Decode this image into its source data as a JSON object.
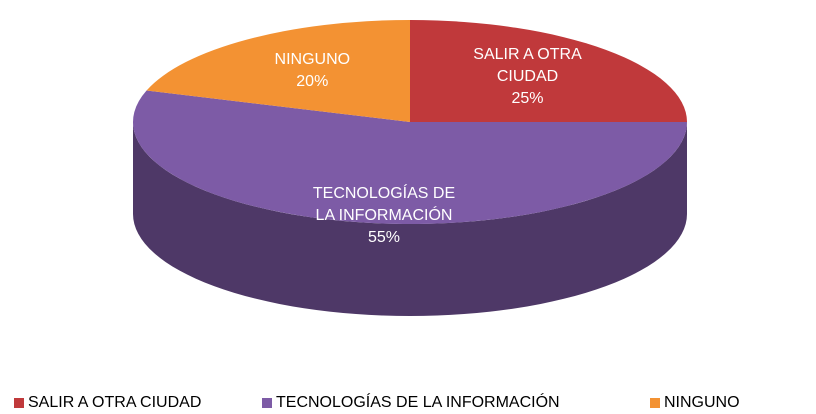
{
  "chart_data": {
    "type": "pie3d",
    "categories": [
      "SALIR A OTRA CIUDAD",
      "TECNOLOGÍAS DE LA INFORMACIÓN",
      "NINGUNO"
    ],
    "values": [
      25,
      55,
      20
    ],
    "value_labels": [
      "25%",
      "55%",
      "20%"
    ],
    "colors": [
      "#c0393b",
      "#7d5ba6",
      "#f39233"
    ],
    "legend": "bottom"
  }
}
